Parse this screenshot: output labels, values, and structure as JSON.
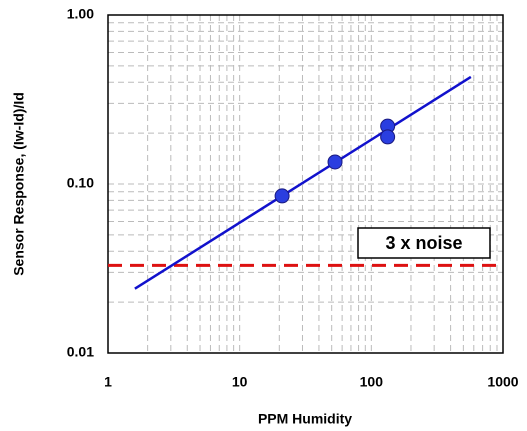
{
  "chart_data": {
    "type": "scatter",
    "x_label": "PPM Humidity",
    "y_label": "Sensor Response, (Iw-Id)/Id",
    "xscale": "log",
    "yscale": "log",
    "grid": true,
    "xlim": [
      1,
      1000
    ],
    "ylim": [
      0.01,
      1
    ],
    "xticks": [
      1,
      10,
      100,
      1000
    ],
    "yticks": [
      {
        "value": 0.01,
        "label": "0.01"
      },
      {
        "value": 0.1,
        "label": "0.10"
      },
      {
        "value": 1,
        "label": "1.00"
      }
    ],
    "xminorticks": [
      2,
      3,
      4,
      5,
      6,
      7,
      8,
      9,
      20,
      30,
      40,
      50,
      60,
      70,
      80,
      90,
      200,
      300,
      400,
      500,
      600,
      700,
      800,
      900
    ],
    "yminorticks": [
      0.02,
      0.03,
      0.04,
      0.05,
      0.06,
      0.07,
      0.08,
      0.09,
      0.2,
      0.3,
      0.4,
      0.5,
      0.6,
      0.7,
      0.8,
      0.9
    ],
    "series": [
      {
        "style": "line",
        "color": "#1111cc",
        "x": [
          1.6,
          570
        ],
        "values": [
          0.024,
          0.43
        ]
      },
      {
        "style": "markers",
        "color": "#2a3ee0",
        "x": [
          21,
          53,
          133,
          133
        ],
        "values": [
          0.085,
          0.135,
          0.22,
          0.19
        ]
      }
    ],
    "reference_line": {
      "value": 0.033,
      "color": "#dd1111",
      "label": "3 x noise"
    }
  }
}
